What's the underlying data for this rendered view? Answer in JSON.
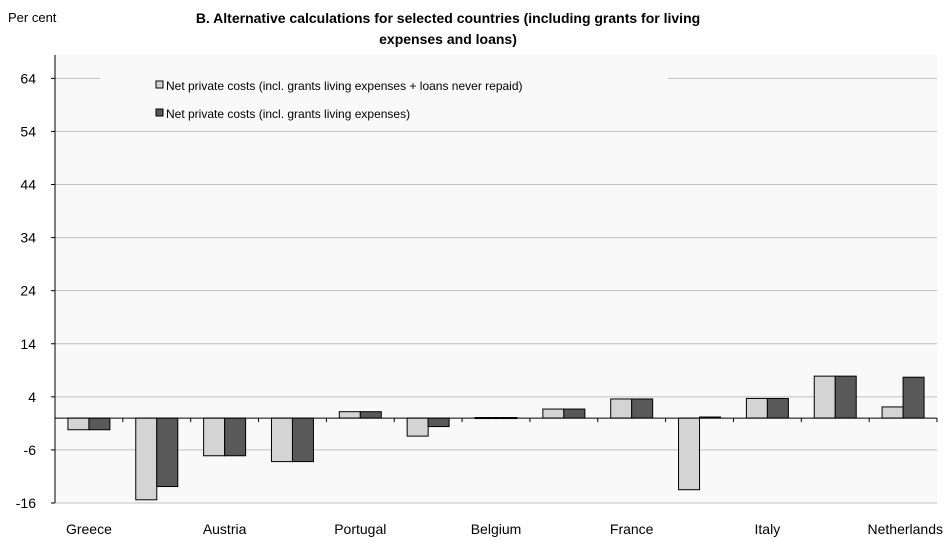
{
  "chart_data": {
    "type": "bar",
    "title_line1": "B. Alternative calculations for selected countries (including grants for living",
    "title_line2": "expenses and loans)",
    "ylabel": "Per cent",
    "ylim": [
      -16,
      64
    ],
    "yticks": [
      -16,
      -6,
      4,
      14,
      24,
      34,
      44,
      54,
      64
    ],
    "grid": true,
    "legend_position": "top-center",
    "categories": [
      "Greece",
      "",
      "Austria",
      "",
      "Portugal",
      "",
      "Belgium",
      "",
      "France",
      "",
      "Italy",
      "",
      "Netherlands"
    ],
    "series": [
      {
        "name": "Net private costs (incl. grants living expenses + loans never repaid)",
        "color": "#d4d4d4",
        "values": [
          -2.2,
          -15.4,
          -7.1,
          -8.2,
          1.2,
          -3.4,
          0.1,
          1.7,
          3.6,
          -13.5,
          3.7,
          7.9,
          2.1
        ]
      },
      {
        "name": "Net private costs (incl. grants living expenses)",
        "color": "#595959",
        "values": [
          -2.2,
          -12.9,
          -7.1,
          -8.2,
          1.2,
          -1.6,
          0.1,
          1.7,
          3.6,
          0.2,
          3.7,
          7.9,
          7.7
        ]
      }
    ]
  },
  "colors": {
    "plot_background": "#f9f9f9",
    "gridline": "#c0c0c0",
    "axis": "#000000"
  }
}
